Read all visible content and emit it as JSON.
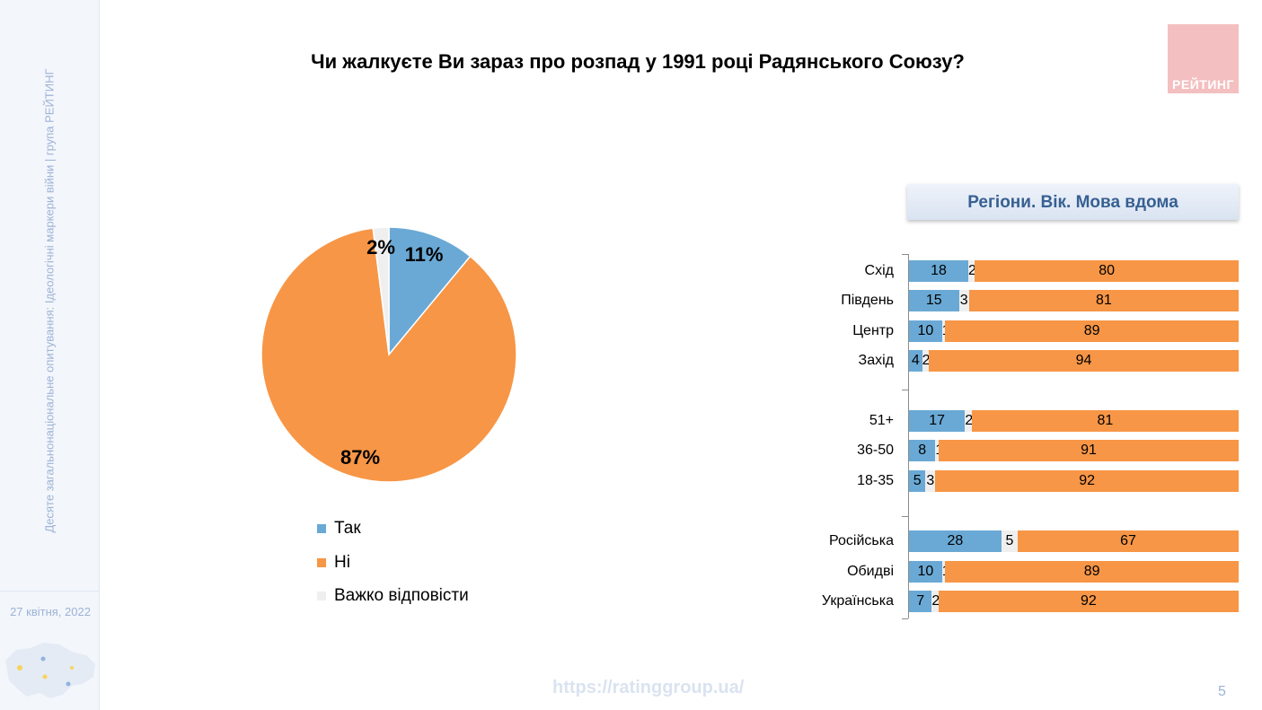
{
  "sidebar": {
    "survey_text": "Десяте загальнонаціональне опитування: Ідеологічні маркери війни  |  група РЕЙТИНГ",
    "date": "27 квітня, 2022"
  },
  "title": "Чи жалкуєте Ви зараз про розпад у 1991 році Радянського Союзу?",
  "logo_text": "РЕЙТИНГ",
  "footer": {
    "url": "https://ratinggroup.ua/",
    "page_number": "5"
  },
  "colors": {
    "yes": "#6aa9d5",
    "no": "#f79646",
    "hard": "#efefef",
    "header_text": "#376092"
  },
  "chart_data": [
    {
      "type": "pie",
      "title": "",
      "slices": [
        {
          "name": "Так",
          "value": 11,
          "label": "11%"
        },
        {
          "name": "Ні",
          "value": 87,
          "label": "87%"
        },
        {
          "name": "Важко відповісти",
          "value": 2,
          "label": "2%"
        }
      ],
      "legend": "bottom"
    },
    {
      "type": "bar",
      "orientation": "horizontal-stacked-100",
      "title": "Регіони. Вік. Мова вдома",
      "series_order": [
        "Так",
        "Важко відповісти",
        "Ні"
      ],
      "groups": [
        {
          "rows": [
            {
              "label": "Схід",
              "values": [
                18,
                2,
                80
              ]
            },
            {
              "label": "Південь",
              "values": [
                15,
                3,
                81
              ]
            },
            {
              "label": "Центр",
              "values": [
                10,
                1,
                89
              ]
            },
            {
              "label": "Захід",
              "values": [
                4,
                2,
                94
              ]
            }
          ]
        },
        {
          "rows": [
            {
              "label": "51+",
              "values": [
                17,
                2,
                81
              ]
            },
            {
              "label": "36-50",
              "values": [
                8,
                1,
                91
              ]
            },
            {
              "label": "18-35",
              "values": [
                5,
                3,
                92
              ]
            }
          ]
        },
        {
          "rows": [
            {
              "label": "Російська",
              "values": [
                28,
                5,
                67
              ]
            },
            {
              "label": "Обидві",
              "values": [
                10,
                1,
                89
              ]
            },
            {
              "label": "Українська",
              "values": [
                7,
                2,
                92
              ]
            }
          ]
        }
      ]
    }
  ]
}
